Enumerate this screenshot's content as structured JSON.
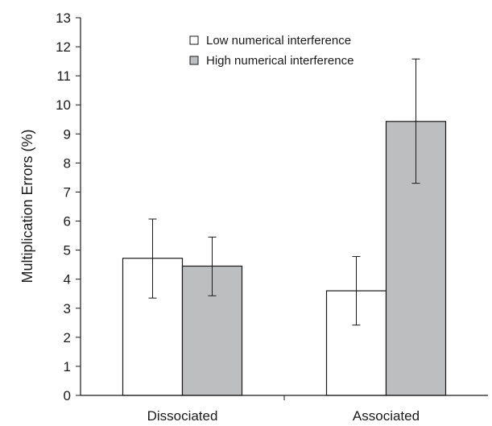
{
  "chart_data": {
    "type": "bar",
    "title": "",
    "xlabel": "",
    "ylabel": "Multiplication Errors (%)",
    "ylim": [
      0,
      13
    ],
    "yticks": [
      0,
      1,
      2,
      3,
      4,
      5,
      6,
      7,
      8,
      9,
      10,
      11,
      12,
      13
    ],
    "grid": false,
    "legend_position": "top-center",
    "categories": [
      "Dissociated",
      "Associated"
    ],
    "series": [
      {
        "name": "Low numerical interference",
        "color": "#ffffff",
        "values": [
          4.72,
          3.6
        ],
        "error_low": [
          3.35,
          2.42
        ],
        "error_high": [
          6.07,
          4.78
        ]
      },
      {
        "name": "High numerical interference",
        "color": "#bcbec0",
        "values": [
          4.45,
          9.43
        ],
        "error_low": [
          3.43,
          7.3
        ],
        "error_high": [
          5.45,
          11.58
        ]
      }
    ]
  }
}
